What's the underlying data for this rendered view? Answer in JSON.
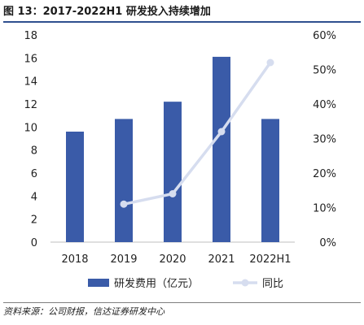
{
  "figure": {
    "title": "图 13：2017-2022H1 研发投入持续增加",
    "source": "资料来源：公司财报，信达证券研发中心"
  },
  "chart_data": {
    "type": "bar",
    "categories": [
      "2018",
      "2019",
      "2020",
      "2021",
      "2022H1"
    ],
    "series": [
      {
        "name": "研发费用（亿元）",
        "type": "bar",
        "axis": "left",
        "color": "#3a5ba8",
        "values": [
          9.6,
          10.7,
          12.2,
          16.1,
          10.7
        ]
      },
      {
        "name": "同比",
        "type": "line",
        "axis": "right",
        "color": "#d6ddef",
        "values": [
          null,
          0.11,
          0.14,
          0.32,
          0.52
        ]
      }
    ],
    "y_left": {
      "ylim": [
        0,
        18
      ],
      "ticks": [
        "0",
        "2",
        "4",
        "6",
        "8",
        "10",
        "12",
        "14",
        "16",
        "18"
      ]
    },
    "y_right": {
      "ylim": [
        0,
        0.6
      ],
      "ticks": [
        "0%",
        "10%",
        "20%",
        "30%",
        "40%",
        "50%",
        "60%"
      ]
    },
    "grid": false,
    "legend_position": "bottom"
  }
}
